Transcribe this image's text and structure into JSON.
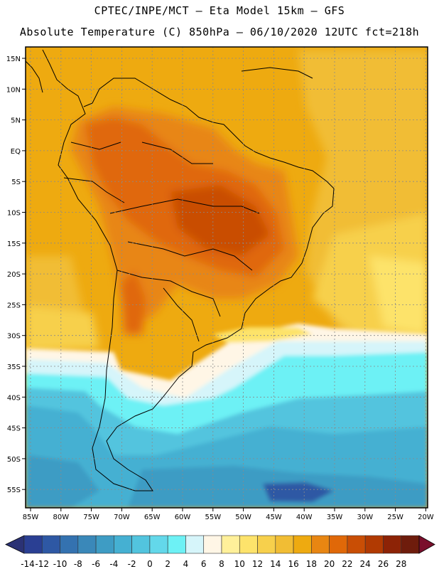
{
  "header": {
    "title_line1": "CPTEC/INPE/MCT –  Eta Model 15km – GFS",
    "title_line2": "Absolute Temperature (C) 850hPa – 06/10/2020 12UTC fct=218h"
  },
  "map": {
    "lat_labels": [
      "15N",
      "10N",
      "5N",
      "EQ",
      "5S",
      "10S",
      "15S",
      "20S",
      "25S",
      "30S",
      "35S",
      "40S",
      "45S",
      "50S",
      "55S"
    ],
    "lon_labels": [
      "85W",
      "80W",
      "75W",
      "70W",
      "65W",
      "60W",
      "55W",
      "50W",
      "45W",
      "40W",
      "35W",
      "30W",
      "25W",
      "20W"
    ],
    "grid": "dotted"
  },
  "colorbar": {
    "tick_labels": [
      "-14",
      "-12",
      "-10",
      "-8",
      "-6",
      "-4",
      "-2",
      "0",
      "2",
      "4",
      "6",
      "8",
      "10",
      "12",
      "14",
      "16",
      "18",
      "20",
      "22",
      "24",
      "26",
      "28"
    ],
    "colors": [
      "#2a3f93",
      "#2e58a4",
      "#3472b0",
      "#3a88b9",
      "#3e9cc4",
      "#45b0d2",
      "#52c4de",
      "#63d8ea",
      "#6df1f5",
      "#d6f5fa",
      "#fff6e6",
      "#fff09a",
      "#fde36b",
      "#f7d04c",
      "#f1bd34",
      "#eeaa10",
      "#e88612",
      "#e06808",
      "#c94e05",
      "#b13a02",
      "#8d2306",
      "#6e1c0c"
    ],
    "under_color": "#2b3275",
    "over_color": "#7a0f2c"
  }
}
